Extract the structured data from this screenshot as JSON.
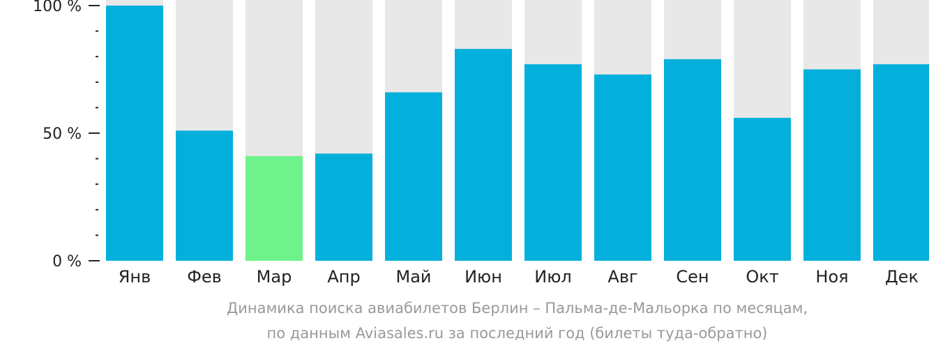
{
  "chart_data": {
    "type": "bar",
    "categories": [
      "Янв",
      "Фев",
      "Мар",
      "Апр",
      "Май",
      "Июн",
      "Июл",
      "Авг",
      "Сен",
      "Окт",
      "Ноя",
      "Дек"
    ],
    "values": [
      100,
      51,
      41,
      42,
      66,
      83,
      77,
      73,
      79,
      56,
      75,
      77
    ],
    "ylim": [
      0,
      100
    ],
    "yticks": [
      {
        "value": 100,
        "label": "100 %"
      },
      {
        "value": 50,
        "label": "50 %"
      },
      {
        "value": 0,
        "label": "0 %"
      }
    ],
    "minor_ticks": [
      90,
      80,
      70,
      60,
      40,
      30,
      20,
      10
    ],
    "highlight_index": 2,
    "colors": {
      "bar": "#03b0dc",
      "highlight": "#6ef28a",
      "background_bar": "#e8e8e8",
      "axis": "#222222"
    }
  },
  "caption": {
    "line1": "Динамика поиска авиабилетов Берлин – Пальма-де-Мальорка по месяцам,",
    "line2": "по данным Aviasales.ru за последний год (билеты туда-обратно)"
  }
}
